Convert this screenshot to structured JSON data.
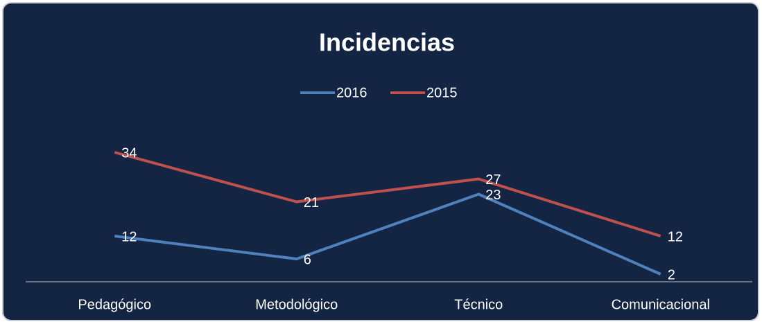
{
  "chart_data": {
    "type": "line",
    "title": "Incidencias",
    "categories": [
      "Pedagógico",
      "Metodológico",
      "Técnico",
      "Comunicacional"
    ],
    "series": [
      {
        "name": "2016",
        "color": "#4f81bd",
        "values": [
          12,
          6,
          23,
          2
        ]
      },
      {
        "name": "2015",
        "color": "#c0504d",
        "values": [
          34,
          21,
          27,
          12
        ]
      }
    ],
    "ylim": [
      0,
      40
    ],
    "legend": "top",
    "data_labels": true
  }
}
